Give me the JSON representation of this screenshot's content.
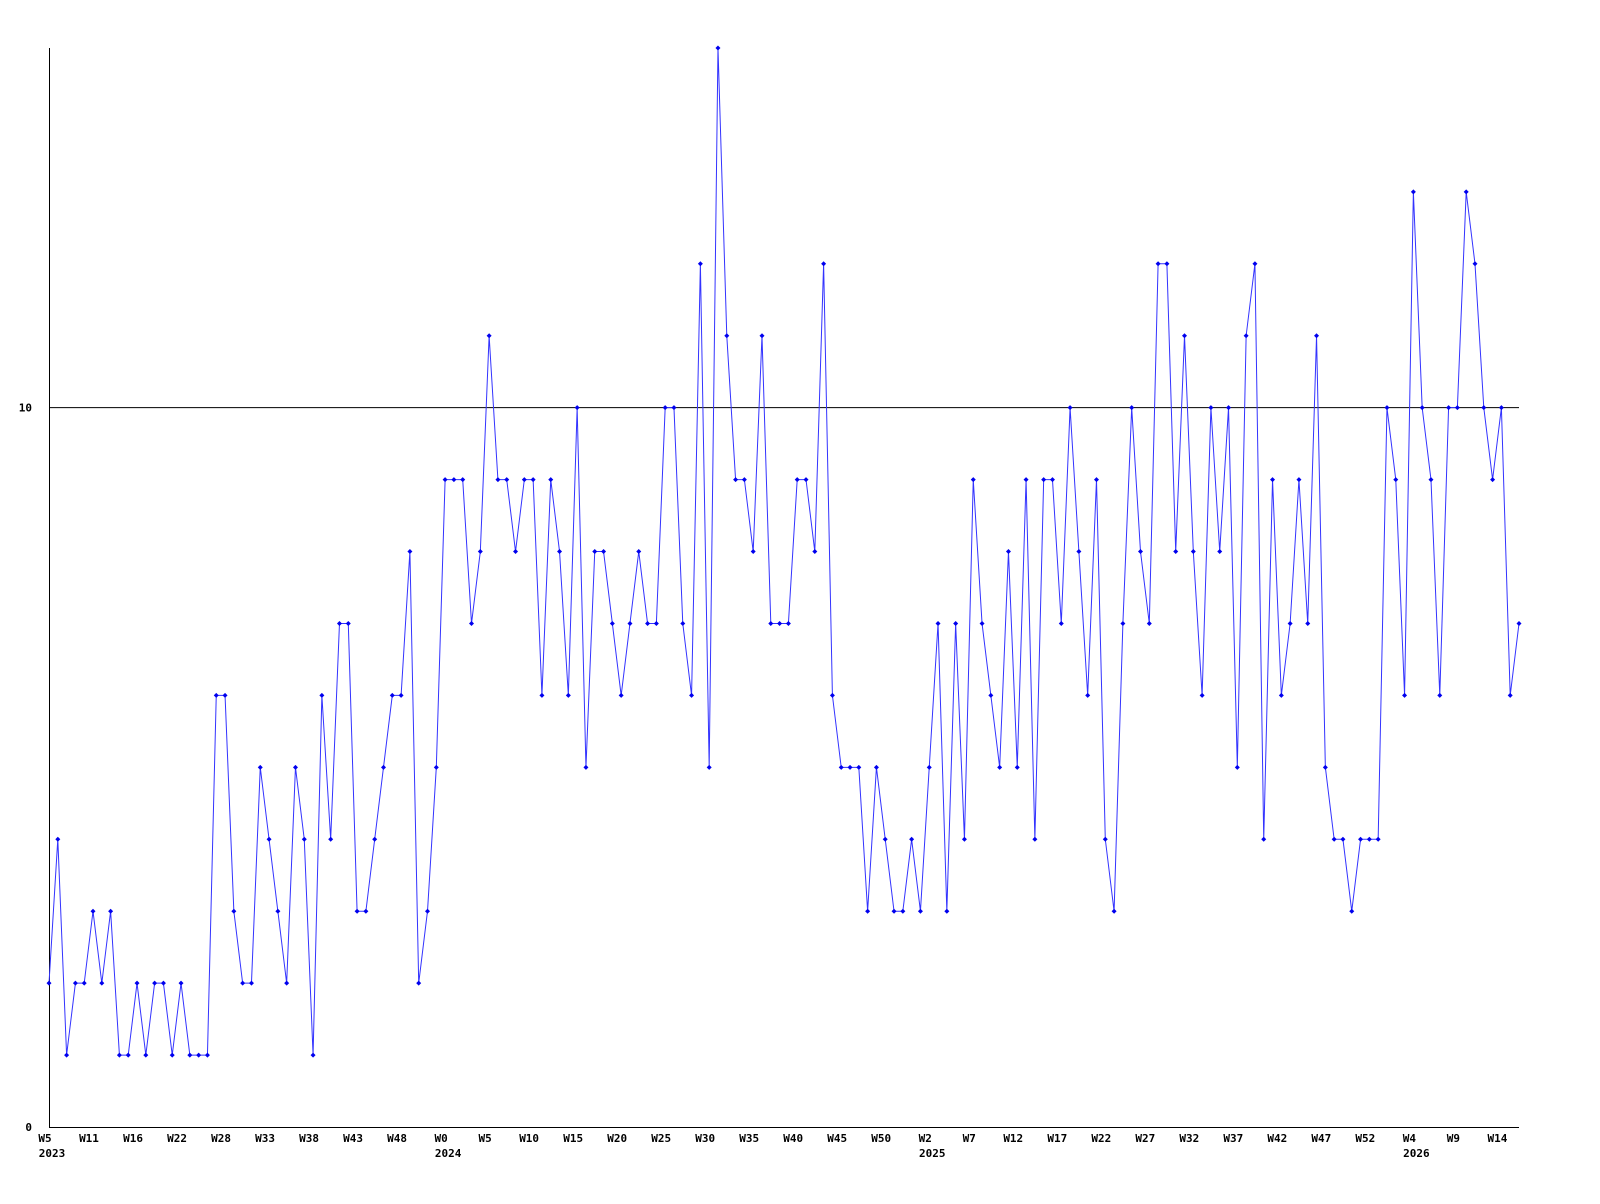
{
  "chart_data": {
    "type": "line",
    "categories": [
      "W5",
      null,
      null,
      null,
      null,
      "W11",
      null,
      null,
      null,
      null,
      "W16",
      null,
      null,
      null,
      null,
      "W22",
      null,
      null,
      null,
      null,
      "W28",
      null,
      null,
      null,
      null,
      "W33",
      null,
      null,
      null,
      null,
      "W38",
      null,
      null,
      null,
      null,
      "W43",
      null,
      null,
      null,
      null,
      "W48",
      null,
      null,
      null,
      null,
      "W0",
      null,
      null,
      null,
      null,
      "W5",
      null,
      null,
      null,
      null,
      "W10",
      null,
      null,
      null,
      null,
      "W15",
      null,
      null,
      null,
      null,
      "W20",
      null,
      null,
      null,
      null,
      "W25",
      null,
      null,
      null,
      null,
      "W30",
      null,
      null,
      null,
      null,
      "W35",
      null,
      null,
      null,
      null,
      "W40",
      null,
      null,
      null,
      null,
      "W45",
      null,
      null,
      null,
      null,
      "W50",
      null,
      null,
      null,
      null,
      "W2",
      null,
      null,
      null,
      null,
      "W7",
      null,
      null,
      null,
      null,
      "W12",
      null,
      null,
      null,
      null,
      "W17",
      null,
      null,
      null,
      null,
      "W22",
      null,
      null,
      null,
      null,
      "W27",
      null,
      null,
      null,
      null,
      "W32",
      null,
      null,
      null,
      null,
      "W37",
      null,
      null,
      null,
      null,
      "W42",
      null,
      null,
      null,
      null,
      "W47",
      null,
      null,
      null,
      null,
      "W52",
      null,
      null,
      null,
      null,
      "W4",
      null,
      null,
      null,
      null,
      "W9",
      null,
      null,
      null,
      null,
      "W14",
      null,
      null
    ],
    "year_labels": [
      "2023",
      null,
      null,
      null,
      null,
      null,
      null,
      null,
      null,
      null,
      null,
      null,
      null,
      null,
      null,
      null,
      null,
      null,
      null,
      null,
      null,
      null,
      null,
      null,
      null,
      null,
      null,
      null,
      null,
      null,
      null,
      null,
      null,
      null,
      null,
      null,
      null,
      null,
      null,
      null,
      null,
      null,
      null,
      null,
      null,
      "2024",
      null,
      null,
      null,
      null,
      null,
      null,
      null,
      null,
      null,
      null,
      null,
      null,
      null,
      null,
      null,
      null,
      null,
      null,
      null,
      null,
      null,
      null,
      null,
      null,
      null,
      null,
      null,
      null,
      null,
      null,
      null,
      null,
      null,
      null,
      null,
      null,
      null,
      null,
      null,
      null,
      null,
      null,
      null,
      null,
      null,
      null,
      null,
      null,
      null,
      null,
      null,
      null,
      null,
      null,
      "2025",
      null,
      null,
      null,
      null,
      null,
      null,
      null,
      null,
      null,
      null,
      null,
      null,
      null,
      null,
      null,
      null,
      null,
      null,
      null,
      null,
      null,
      null,
      null,
      null,
      null,
      null,
      null,
      null,
      null,
      null,
      null,
      null,
      null,
      null,
      null,
      null,
      null,
      null,
      null,
      null,
      null,
      null,
      null,
      null,
      null,
      null,
      null,
      null,
      null,
      null,
      null,
      null,
      null,
      null,
      "2026",
      null,
      null,
      null,
      null,
      null,
      null,
      null,
      null,
      null,
      null,
      null,
      null
    ],
    "values": [
      2,
      4,
      1,
      2,
      2,
      3,
      2,
      3,
      1,
      1,
      2,
      1,
      2,
      2,
      1,
      2,
      1,
      1,
      1,
      6,
      6,
      3,
      2,
      2,
      5,
      4,
      3,
      2,
      5,
      4,
      1,
      6,
      4,
      7,
      7,
      3,
      3,
      4,
      5,
      6,
      6,
      8,
      2,
      3,
      5,
      9,
      9,
      9,
      7,
      8,
      11,
      9,
      9,
      8,
      9,
      9,
      6,
      9,
      8,
      6,
      10,
      5,
      8,
      8,
      7,
      6,
      7,
      8,
      7,
      7,
      10,
      10,
      7,
      6,
      12,
      5,
      15,
      11,
      9,
      9,
      8,
      11,
      7,
      7,
      7,
      9,
      9,
      8,
      12,
      6,
      5,
      5,
      5,
      3,
      5,
      4,
      3,
      3,
      4,
      3,
      5,
      7,
      3,
      7,
      4,
      9,
      7,
      6,
      5,
      8,
      5,
      9,
      4,
      9,
      9,
      7,
      10,
      8,
      6,
      9,
      4,
      3,
      7,
      10,
      8,
      7,
      12,
      12,
      8,
      11,
      8,
      6,
      10,
      8,
      10,
      5,
      11,
      12,
      4,
      9,
      6,
      7,
      9,
      7,
      11,
      5,
      4,
      4,
      3,
      4,
      4,
      4,
      10,
      9,
      6,
      13,
      10,
      9,
      6,
      10,
      10,
      13,
      12,
      10,
      9,
      10,
      6,
      7
    ],
    "color": "#3333ff",
    "ylim": [
      0,
      15
    ],
    "yticks": [
      0,
      10
    ],
    "grid": true
  }
}
